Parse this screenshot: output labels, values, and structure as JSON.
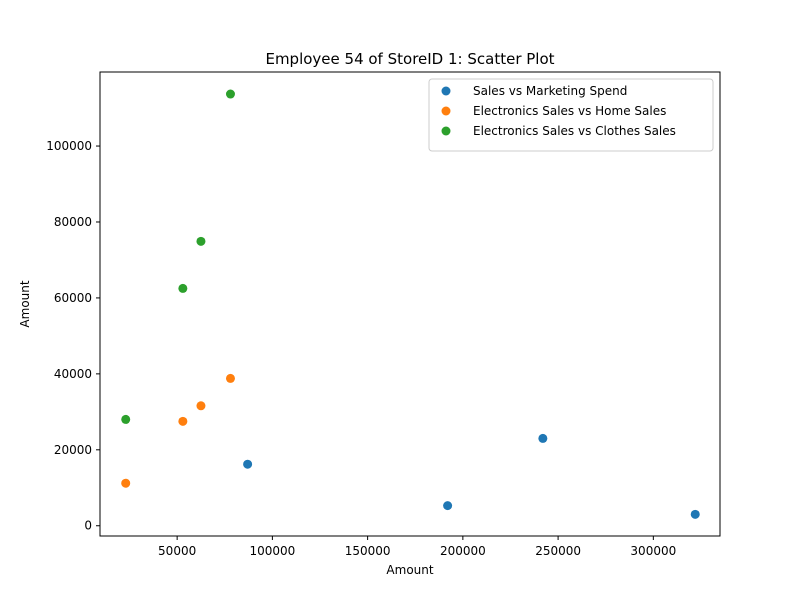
{
  "chart_data": {
    "type": "scatter",
    "title": "Employee 54 of StoreID 1: Scatter Plot",
    "xlabel": "Amount",
    "ylabel": "Amount",
    "xlim": [
      9500,
      335000
    ],
    "ylim": [
      -2700,
      119500
    ],
    "xticks": [
      50000,
      100000,
      150000,
      200000,
      250000,
      300000
    ],
    "yticks": [
      0,
      20000,
      40000,
      60000,
      80000,
      100000
    ],
    "grid": false,
    "legend_position": "top-right",
    "series": [
      {
        "name": "Sales vs Marketing Spend",
        "color": "#1f77b4",
        "points": [
          {
            "x": 87000,
            "y": 16200
          },
          {
            "x": 192000,
            "y": 5300
          },
          {
            "x": 242000,
            "y": 23000
          },
          {
            "x": 322000,
            "y": 3000
          }
        ]
      },
      {
        "name": "Electronics Sales vs Home Sales",
        "color": "#ff7f0e",
        "points": [
          {
            "x": 23000,
            "y": 11200
          },
          {
            "x": 53000,
            "y": 27500
          },
          {
            "x": 62500,
            "y": 31600
          },
          {
            "x": 78000,
            "y": 38800
          }
        ]
      },
      {
        "name": "Electronics Sales vs Clothes Sales",
        "color": "#2ca02c",
        "points": [
          {
            "x": 23000,
            "y": 28000
          },
          {
            "x": 53000,
            "y": 62500
          },
          {
            "x": 62500,
            "y": 74900
          },
          {
            "x": 78000,
            "y": 113700
          }
        ]
      }
    ]
  }
}
